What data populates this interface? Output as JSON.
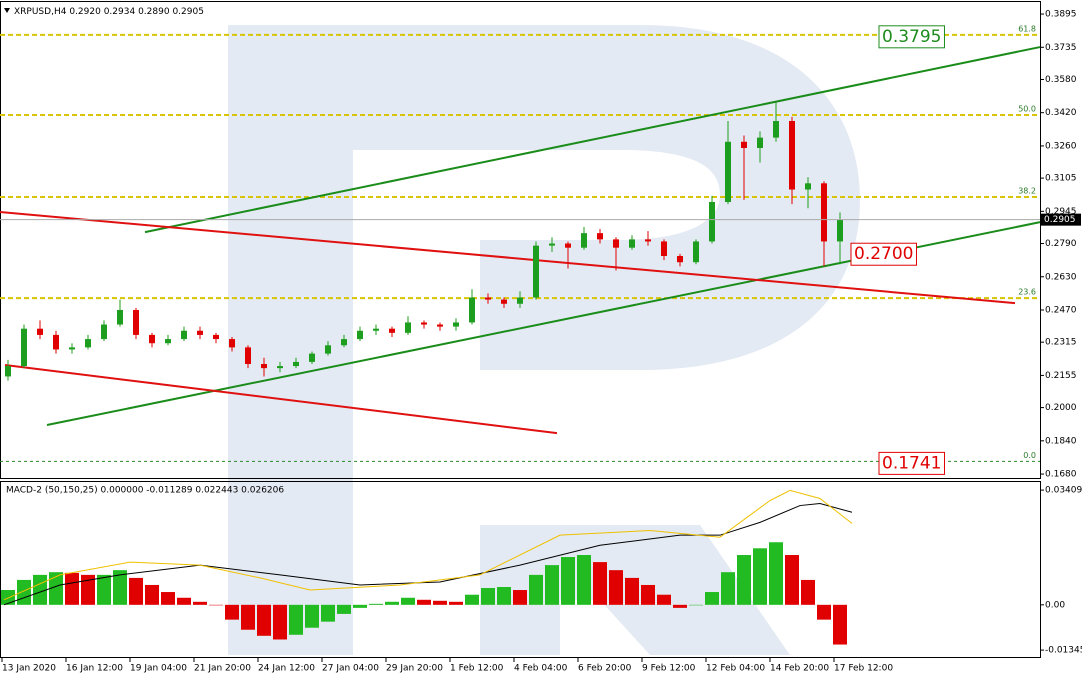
{
  "chart_data": [
    {
      "type": "candlestick",
      "title": "XRPUSD,H4",
      "ohlc_header": [
        "0.2920",
        "0.2934",
        "0.2890",
        "0.2905"
      ],
      "x": [
        26,
        42,
        58,
        74,
        90,
        106,
        122,
        138,
        154,
        170,
        186,
        202,
        218,
        234,
        250,
        266,
        282,
        298,
        314,
        330,
        346,
        362,
        378,
        394,
        410,
        426,
        442,
        458,
        474,
        490,
        506,
        522,
        538,
        554,
        570,
        586,
        602,
        618,
        634,
        650,
        666,
        682,
        698,
        714,
        730,
        746,
        762,
        778,
        794,
        810,
        826,
        842,
        858
      ],
      "candles": [
        [
          0.215,
          0.223,
          0.213,
          0.22
        ],
        [
          0.22,
          0.24,
          0.219,
          0.238
        ],
        [
          0.238,
          0.242,
          0.233,
          0.235
        ],
        [
          0.235,
          0.237,
          0.226,
          0.228
        ],
        [
          0.228,
          0.231,
          0.226,
          0.229
        ],
        [
          0.229,
          0.235,
          0.228,
          0.233
        ],
        [
          0.233,
          0.242,
          0.232,
          0.24
        ],
        [
          0.24,
          0.252,
          0.239,
          0.247
        ],
        [
          0.247,
          0.248,
          0.233,
          0.235
        ],
        [
          0.235,
          0.236,
          0.229,
          0.231
        ],
        [
          0.231,
          0.235,
          0.23,
          0.233
        ],
        [
          0.233,
          0.239,
          0.232,
          0.237
        ],
        [
          0.237,
          0.239,
          0.233,
          0.235
        ],
        [
          0.235,
          0.236,
          0.231,
          0.233
        ],
        [
          0.233,
          0.234,
          0.227,
          0.229
        ],
        [
          0.229,
          0.23,
          0.219,
          0.221
        ],
        [
          0.221,
          0.224,
          0.215,
          0.219
        ],
        [
          0.219,
          0.222,
          0.217,
          0.22
        ],
        [
          0.22,
          0.224,
          0.219,
          0.222
        ],
        [
          0.222,
          0.227,
          0.221,
          0.226
        ],
        [
          0.226,
          0.232,
          0.225,
          0.23
        ],
        [
          0.23,
          0.235,
          0.229,
          0.233
        ],
        [
          0.233,
          0.239,
          0.232,
          0.237
        ],
        [
          0.237,
          0.24,
          0.235,
          0.238
        ],
        [
          0.238,
          0.239,
          0.234,
          0.236
        ],
        [
          0.236,
          0.244,
          0.235,
          0.241
        ],
        [
          0.241,
          0.242,
          0.238,
          0.24
        ],
        [
          0.24,
          0.241,
          0.237,
          0.239
        ],
        [
          0.239,
          0.243,
          0.237,
          0.241
        ],
        [
          0.241,
          0.257,
          0.24,
          0.253
        ],
        [
          0.253,
          0.255,
          0.25,
          0.252
        ],
        [
          0.252,
          0.253,
          0.248,
          0.25
        ],
        [
          0.25,
          0.256,
          0.248,
          0.253
        ],
        [
          0.253,
          0.28,
          0.252,
          0.278
        ],
        [
          0.278,
          0.282,
          0.275,
          0.279
        ],
        [
          0.279,
          0.28,
          0.267,
          0.277
        ],
        [
          0.277,
          0.287,
          0.276,
          0.284
        ],
        [
          0.284,
          0.286,
          0.279,
          0.281
        ],
        [
          0.281,
          0.282,
          0.266,
          0.277
        ],
        [
          0.277,
          0.283,
          0.276,
          0.281
        ],
        [
          0.281,
          0.285,
          0.278,
          0.28
        ],
        [
          0.28,
          0.281,
          0.271,
          0.273
        ],
        [
          0.273,
          0.274,
          0.268,
          0.27
        ],
        [
          0.27,
          0.281,
          0.269,
          0.28
        ],
        [
          0.28,
          0.302,
          0.279,
          0.299
        ],
        [
          0.299,
          0.338,
          0.298,
          0.328
        ],
        [
          0.328,
          0.331,
          0.3,
          0.325
        ],
        [
          0.325,
          0.333,
          0.318,
          0.33
        ],
        [
          0.33,
          0.347,
          0.328,
          0.338
        ],
        [
          0.338,
          0.34,
          0.298,
          0.305
        ],
        [
          0.305,
          0.311,
          0.296,
          0.308
        ],
        [
          0.308,
          0.309,
          0.268,
          0.28
        ],
        [
          0.28,
          0.294,
          0.269,
          0.2905
        ]
      ],
      "up_color": "#1e9e1e",
      "down_color": "#e00000",
      "xlim": [
        18,
        1058
      ],
      "xticks": [
        {
          "value": 20,
          "label": "13 Jan 2020"
        },
        {
          "value": 84,
          "label": "16 Jan 12:00"
        },
        {
          "value": 148,
          "label": "19 Jan 04:00"
        },
        {
          "value": 212,
          "label": "21 Jan 20:00"
        },
        {
          "value": 276,
          "label": "24 Jan 12:00"
        },
        {
          "value": 340,
          "label": "27 Jan 04:00"
        },
        {
          "value": 404,
          "label": "29 Jan 20:00"
        },
        {
          "value": 468,
          "label": "1 Feb 12:00"
        },
        {
          "value": 532,
          "label": "4 Feb 04:00"
        },
        {
          "value": 596,
          "label": "6 Feb 20:00"
        },
        {
          "value": 660,
          "label": "9 Feb 12:00"
        },
        {
          "value": 724,
          "label": "12 Feb 04:00"
        },
        {
          "value": 788,
          "label": "14 Feb 20:00"
        },
        {
          "value": 852,
          "label": "17 Feb 12:00"
        }
      ],
      "ylim": [
        0.1661,
        0.3953
      ],
      "yticks": [
        0.3895,
        0.3735,
        {
          "value": 0.358,
          "label": "0.3580"
        },
        {
          "value": 0.342,
          "label": "0.3420"
        },
        {
          "value": 0.326,
          "label": "0.3260"
        },
        0.3105,
        0.2945,
        {
          "value": 0.279,
          "label": "0.2790"
        },
        {
          "value": 0.263,
          "label": "0.2630"
        },
        {
          "value": 0.247,
          "label": "0.2470"
        },
        0.2315,
        0.2155,
        {
          "value": 0.2,
          "label": "0.2000"
        },
        {
          "value": 0.184,
          "label": "0.1840"
        },
        {
          "value": 0.168,
          "label": "0.1680"
        }
      ],
      "last_price": 0.2905,
      "fib_color": "#d8c400",
      "fib_levels": [
        {
          "name": "61.8",
          "value": 0.3795,
          "box_color": "#1e8c1e"
        },
        {
          "name": "50.0",
          "value": 0.3409
        },
        {
          "name": "38.2",
          "value": 0.3014
        },
        {
          "name": "23.6",
          "value": 0.2527
        },
        {
          "name": "0.0",
          "value": 0.1741,
          "box_color": "#e00000"
        }
      ],
      "trendlines": [
        {
          "x": [
            163,
            1058
          ],
          "y": [
            0.2845,
            0.3736
          ],
          "color": "#1a8c1a"
        },
        {
          "x": [
            65,
            1058
          ],
          "y": [
            0.1916,
            0.2893
          ],
          "color": "#1a8c1a"
        },
        {
          "x": [
            18,
            1033
          ],
          "y": [
            0.2942,
            0.2503
          ],
          "color": "#e01010"
        },
        {
          "x": [
            23,
            575
          ],
          "y": [
            0.2205,
            0.1877
          ],
          "color": "#e01010"
        }
      ],
      "annotations": [
        {
          "value": 0.27,
          "label": "0.2700",
          "color": "#e00000"
        }
      ]
    },
    {
      "type": "macd",
      "title": "MACD-2 (50,150,25) 0.000000 -0.011289 0.022443 0.026206",
      "histogram": [
        0.0044,
        0.0074,
        0.0089,
        0.0097,
        0.0095,
        0.0089,
        0.0089,
        0.0103,
        0.008,
        0.0059,
        0.0038,
        0.0021,
        0.0009,
        0,
        -0.0044,
        -0.0074,
        -0.0092,
        -0.0103,
        -0.0089,
        -0.0068,
        -0.005,
        -0.0027,
        -0.0009,
        0.0003,
        0.0009,
        0.0021,
        0.0015,
        0.0012,
        0.0009,
        0.003,
        0.005,
        0.0053,
        0.0044,
        0.0089,
        0.0118,
        0.0142,
        0.0148,
        0.0127,
        0.0103,
        0.008,
        0.0059,
        0.003,
        -0.0009,
        0,
        0.0038,
        0.0097,
        0.0148,
        0.0168,
        0.0186,
        0.0148,
        0.0074,
        -0.0044,
        -0.0118
      ],
      "up_color": "#22bb22",
      "down_color": "#e00000",
      "series": [
        {
          "color": "#000000",
          "x": [
            22,
            78,
            138,
            218,
            298,
            378,
            458,
            538,
            618,
            698,
            738,
            778,
            818,
            838,
            870
          ],
          "values": [
            0,
            0.0059,
            0.0089,
            0.0118,
            0.0089,
            0.0059,
            0.0068,
            0.0118,
            0.0177,
            0.0207,
            0.0207,
            0.0245,
            0.0295,
            0.0301,
            0.0275
          ]
        },
        {
          "color": "#f0c000",
          "x": [
            22,
            78,
            148,
            218,
            278,
            328,
            418,
            498,
            578,
            668,
            738,
            788,
            808,
            838,
            870
          ],
          "values": [
            0.0015,
            0.0089,
            0.0127,
            0.0118,
            0.008,
            0.0044,
            0.0059,
            0.0089,
            0.0207,
            0.0221,
            0.0201,
            0.031,
            0.034,
            0.0316,
            0.0242
          ]
        }
      ],
      "ylim": [
        -0.0158,
        0.0365
      ],
      "yticks": [
        0.034095,
        {
          "value": 0,
          "label": "0.00"
        },
        -0.01345
      ]
    }
  ]
}
